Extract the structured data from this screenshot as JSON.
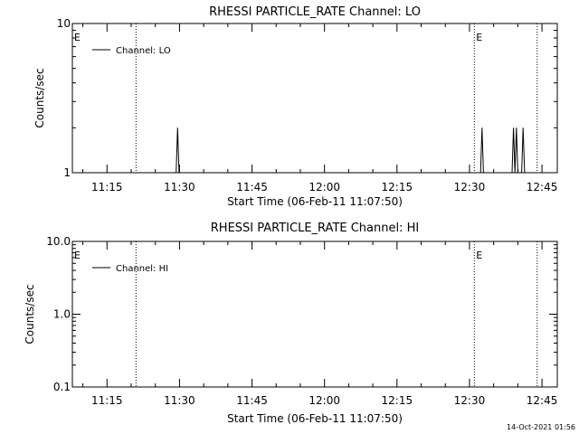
{
  "footer": {
    "timestamp": "14-Oct-2021 01:56"
  },
  "chart_data": [
    {
      "type": "line",
      "title": "RHESSI PARTICLE_RATE Channel: LO",
      "xlabel": "Start Time (06-Feb-11 11:07:50)",
      "ylabel": "Counts/sec",
      "y_scale": "log",
      "ylim": [
        1,
        10
      ],
      "y_ticks": [
        {
          "value": 1,
          "label": "1"
        },
        {
          "value": 10,
          "label": "10"
        }
      ],
      "xlim": [
        "11:07:50",
        "12:48:10"
      ],
      "x_ticks": [
        "11:15",
        "11:30",
        "11:45",
        "12:00",
        "12:15",
        "12:30",
        "12:45"
      ],
      "vertical_dotted_lines": [
        "11:21",
        "12:31",
        "12:44"
      ],
      "markers": [
        {
          "label": "E",
          "at": "11:07:50"
        },
        {
          "label": "E",
          "at": "12:31"
        }
      ],
      "legend": {
        "position": "top-left",
        "entries": [
          "Channel: LO"
        ]
      },
      "grid": false,
      "series": [
        {
          "name": "Channel: LO",
          "x": [
            "11:29:18",
            "11:29:36",
            "11:29:54",
            "12:32:18",
            "12:32:36",
            "12:32:54",
            "12:38:48",
            "12:39:06",
            "12:39:24",
            "12:39:42",
            "12:40:00",
            "12:40:48",
            "12:41:06",
            "12:41:24"
          ],
          "values": [
            1,
            2,
            1,
            1,
            2,
            1,
            1,
            2,
            1,
            2,
            1,
            1,
            2,
            1
          ]
        }
      ]
    },
    {
      "type": "line",
      "title": "RHESSI PARTICLE_RATE Channel: HI",
      "xlabel": "Start Time (06-Feb-11 11:07:50)",
      "ylabel": "Counts/sec",
      "y_scale": "log",
      "ylim": [
        0.1,
        10
      ],
      "y_ticks": [
        {
          "value": 0.1,
          "label": "0.1"
        },
        {
          "value": 1,
          "label": "1.0"
        },
        {
          "value": 10,
          "label": "10.0"
        }
      ],
      "xlim": [
        "11:07:50",
        "12:48:10"
      ],
      "x_ticks": [
        "11:15",
        "11:30",
        "11:45",
        "12:00",
        "12:15",
        "12:30",
        "12:45"
      ],
      "vertical_dotted_lines": [
        "11:21",
        "12:31",
        "12:44"
      ],
      "markers": [
        {
          "label": "E",
          "at": "11:07:50"
        },
        {
          "label": "E",
          "at": "12:31"
        }
      ],
      "legend": {
        "position": "top-left",
        "entries": [
          "Channel: HI"
        ]
      },
      "grid": false,
      "series": [
        {
          "name": "Channel: HI",
          "x": [],
          "values": []
        }
      ]
    }
  ]
}
